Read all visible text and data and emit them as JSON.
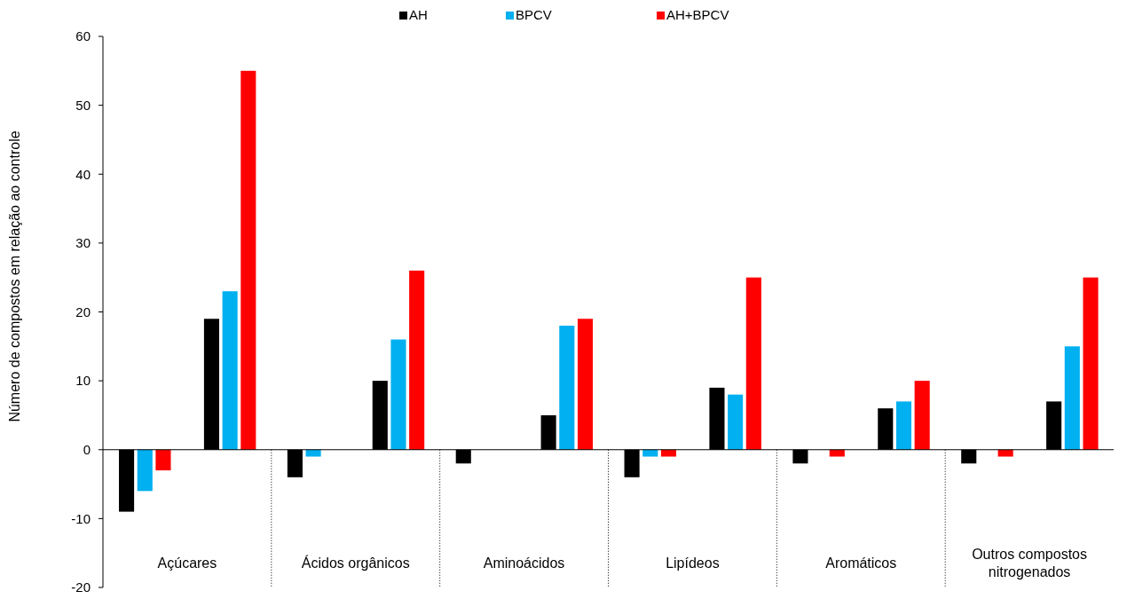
{
  "chart_data": {
    "type": "bar",
    "ylabel": "Número de compostos em relação ao controle",
    "categories": [
      "Açúcares",
      "Ácidos orgânicos",
      "Aminoácidos",
      "Lipídeos",
      "Aromáticos",
      "Outros compostos nitrogenados"
    ],
    "series": [
      {
        "name": "AH",
        "color": "#000000",
        "values": [
          -9,
          -4,
          -2,
          -4,
          -2,
          -2
        ]
      },
      {
        "name": "BPCV",
        "color": "#00b0f0",
        "values": [
          -6,
          -1,
          0,
          -1,
          0,
          0
        ]
      },
      {
        "name": "AH+BPCV",
        "color": "#ff0000",
        "values": [
          -3,
          0,
          0,
          -1,
          -1,
          -1
        ]
      },
      {
        "color": "#000000",
        "values": [
          19,
          10,
          5,
          9,
          6,
          7
        ]
      },
      {
        "color": "#00b0f0",
        "values": [
          23,
          16,
          18,
          8,
          7,
          15
        ]
      },
      {
        "color": "#ff0000",
        "values": [
          55,
          26,
          19,
          25,
          10,
          25
        ]
      }
    ],
    "ylim": [
      -20,
      60
    ],
    "yticks": [
      -20,
      -10,
      0,
      10,
      20,
      30,
      40,
      50,
      60
    ],
    "legend": "top"
  }
}
